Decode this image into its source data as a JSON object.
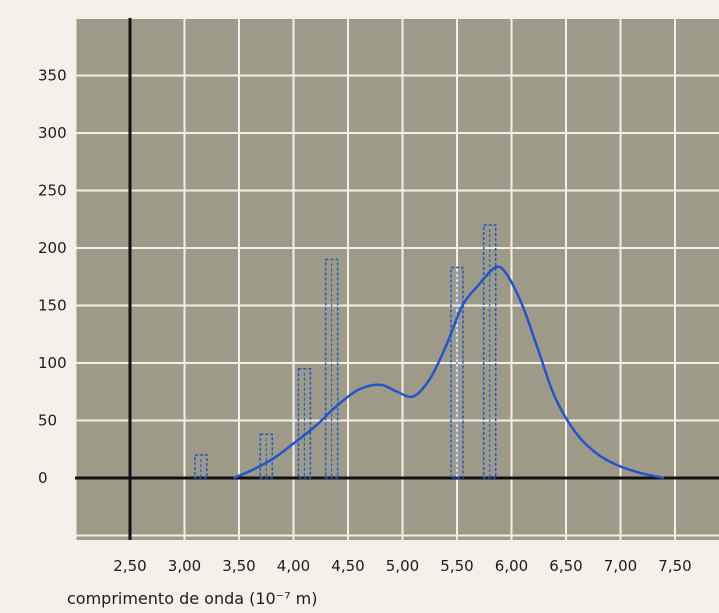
{
  "chart_data": {
    "type": "line",
    "xlabel_text": "comprimento de onda",
    "xlabel_unit": "(10⁻⁷ m)",
    "ylabel": "",
    "xlim": [
      2.0,
      7.9
    ],
    "ylim": [
      -50,
      400
    ],
    "x_ticks": [
      "2,50",
      "3,00",
      "3,50",
      "4,00",
      "4,50",
      "5,00",
      "5,50",
      "6,00",
      "6,50",
      "7,00",
      "7,50"
    ],
    "y_ticks": [
      "0",
      "50",
      "100",
      "150",
      "200",
      "250",
      "300",
      "350"
    ],
    "grid": true,
    "series": [
      {
        "kind": "curve",
        "color": "#2255cc",
        "x": [
          3.45,
          3.6,
          3.8,
          4.0,
          4.2,
          4.4,
          4.6,
          4.8,
          4.95,
          5.1,
          5.25,
          5.4,
          5.55,
          5.7,
          5.85,
          5.95,
          6.1,
          6.25,
          6.4,
          6.6,
          6.8,
          7.0,
          7.2,
          7.4
        ],
        "y": [
          0,
          6,
          16,
          30,
          45,
          63,
          77,
          81,
          75,
          71,
          86,
          115,
          150,
          168,
          183,
          178,
          150,
          110,
          70,
          38,
          20,
          10,
          4,
          0
        ]
      },
      {
        "kind": "bars",
        "color": "#2255cc",
        "x": [
          3.15,
          3.75,
          4.1,
          4.35,
          5.5,
          5.8
        ],
        "y": [
          20,
          38,
          95,
          190,
          183,
          220
        ]
      }
    ]
  }
}
